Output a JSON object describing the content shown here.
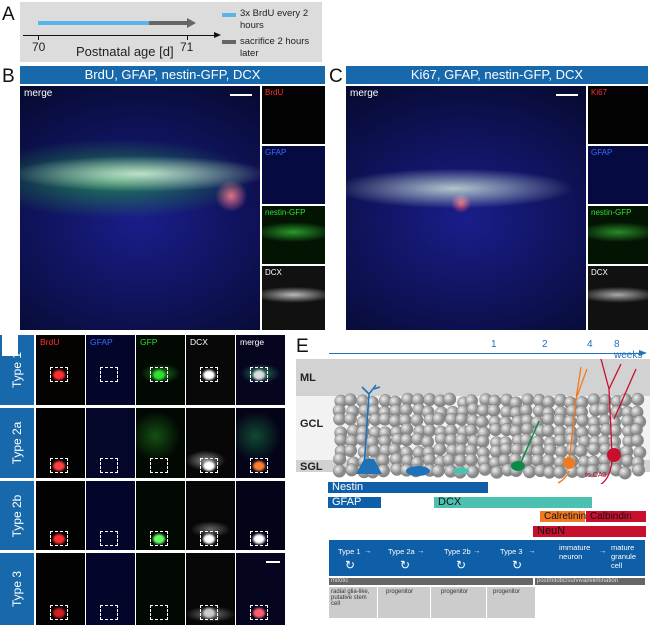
{
  "panel_a": {
    "letter": "A",
    "start_tick": "70",
    "end_tick": "71",
    "axis_label": "Postnatal age [d]",
    "legend": [
      {
        "label": "3x BrdU every 2 hours",
        "color": "#5ab4ec"
      },
      {
        "label": "sacrifice 2 hours later",
        "color": "#666666"
      }
    ]
  },
  "panel_b": {
    "letter": "B",
    "title": "BrdU, GFAP, nestin-GFP, DCX",
    "merge": "merge",
    "channels": [
      {
        "label": "BrdU",
        "color": "#ff3030"
      },
      {
        "label": "GFAP",
        "color": "#3a6bff"
      },
      {
        "label": "nestin-GFP",
        "color": "#30e030"
      },
      {
        "label": "DCX",
        "color": "#ffffff"
      }
    ]
  },
  "panel_c": {
    "letter": "C",
    "title": "Ki67, GFAP, nestin-GFP, DCX",
    "merge": "merge",
    "channels": [
      {
        "label": "Ki67",
        "color": "#ff3030"
      },
      {
        "label": "GFAP",
        "color": "#3a6bff"
      },
      {
        "label": "nestin-GFP",
        "color": "#30e030"
      },
      {
        "label": "DCX",
        "color": "#ffffff"
      }
    ]
  },
  "panel_d": {
    "columns": [
      {
        "label": "BrdU",
        "color": "#ff3030"
      },
      {
        "label": "GFAP",
        "color": "#3a6bff"
      },
      {
        "label": "GFP",
        "color": "#30e030"
      },
      {
        "label": "DCX",
        "color": "#ffffff"
      },
      {
        "label": "merge",
        "color": "#ffffff"
      }
    ],
    "rows": [
      "Type 1",
      "Type 2a",
      "Type 2b",
      "Type 3"
    ]
  },
  "panel_e": {
    "letter": "E",
    "timeline": [
      "1",
      "2",
      "4",
      "8 weeks"
    ],
    "layers": [
      "ML",
      "GCL",
      "SGL"
    ],
    "to_ca3": "to CA3",
    "markers": [
      {
        "label": "Nestin",
        "color": "#0f5ea8"
      },
      {
        "label": "GFAP",
        "color": "#0f5ea8"
      },
      {
        "label": "DCX",
        "color": "#4cc1b0"
      },
      {
        "label": "Calretinin",
        "color": "#f07a22"
      },
      {
        "label": "Calbindin",
        "color": "#c8102e"
      },
      {
        "label": "NeuN",
        "color": "#c8102e"
      }
    ],
    "stages": [
      "Type 1",
      "Type 2a",
      "Type 2b",
      "Type 3",
      "immature neuron",
      "mature granule cell"
    ],
    "phases": [
      "mitotic",
      "postmitotic/survival/elimination"
    ],
    "cell_types": [
      "radial glia-like, putative stem cell",
      "progenitor",
      "progenitor",
      "progenitor"
    ]
  }
}
